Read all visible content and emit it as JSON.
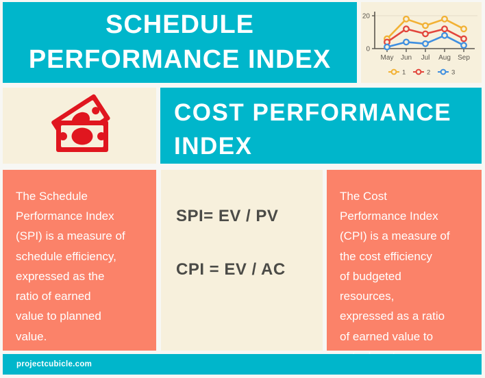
{
  "header": {
    "title": "SCHEDULE\nPERFORMANCE INDEX"
  },
  "cpi_banner": {
    "title": "COST PERFORMANCE\nINDEX"
  },
  "columns": {
    "spi_description": "The Schedule\nPerformance Index\n(SPI) is a measure of\nschedule efficiency,\nexpressed as the\nratio of earned\nvalue to planned\nvalue.",
    "formulas": {
      "spi": "SPI= EV / PV",
      "cpi": "CPI = EV / AC"
    },
    "cpi_description": "The Cost\nPerformance Index\n(CPI) is a measure of\nthe cost efficiency\nof budgeted\nresources,\nexpressed as a ratio\nof earned value to\nactual cost."
  },
  "footer": {
    "site": "projectcubicle.com"
  },
  "icons": {
    "money": "money-banknotes-icon"
  },
  "colors": {
    "teal": "#00b6cb",
    "salmon": "#fb8269",
    "cream": "#f7f0dc",
    "red": "#e0161f",
    "dark_text": "#4b4b47",
    "axis_text": "#5a564e",
    "white": "#ffffff"
  },
  "chart_data": {
    "type": "line",
    "title": "",
    "x": [
      "May",
      "Jun",
      "Jul",
      "Aug",
      "Sep"
    ],
    "series": [
      {
        "name": "1",
        "color": "#f2b134",
        "values": [
          6,
          18,
          14,
          18,
          12
        ]
      },
      {
        "name": "2",
        "color": "#e2453c",
        "values": [
          4,
          12,
          9,
          12,
          6
        ]
      },
      {
        "name": "3",
        "color": "#3e8ee0",
        "values": [
          1,
          4,
          3,
          8,
          2
        ]
      }
    ],
    "ylim": [
      0,
      20
    ],
    "yticks": [
      0,
      20
    ],
    "grid": "top-gridline-only",
    "legend_position": "bottom"
  }
}
